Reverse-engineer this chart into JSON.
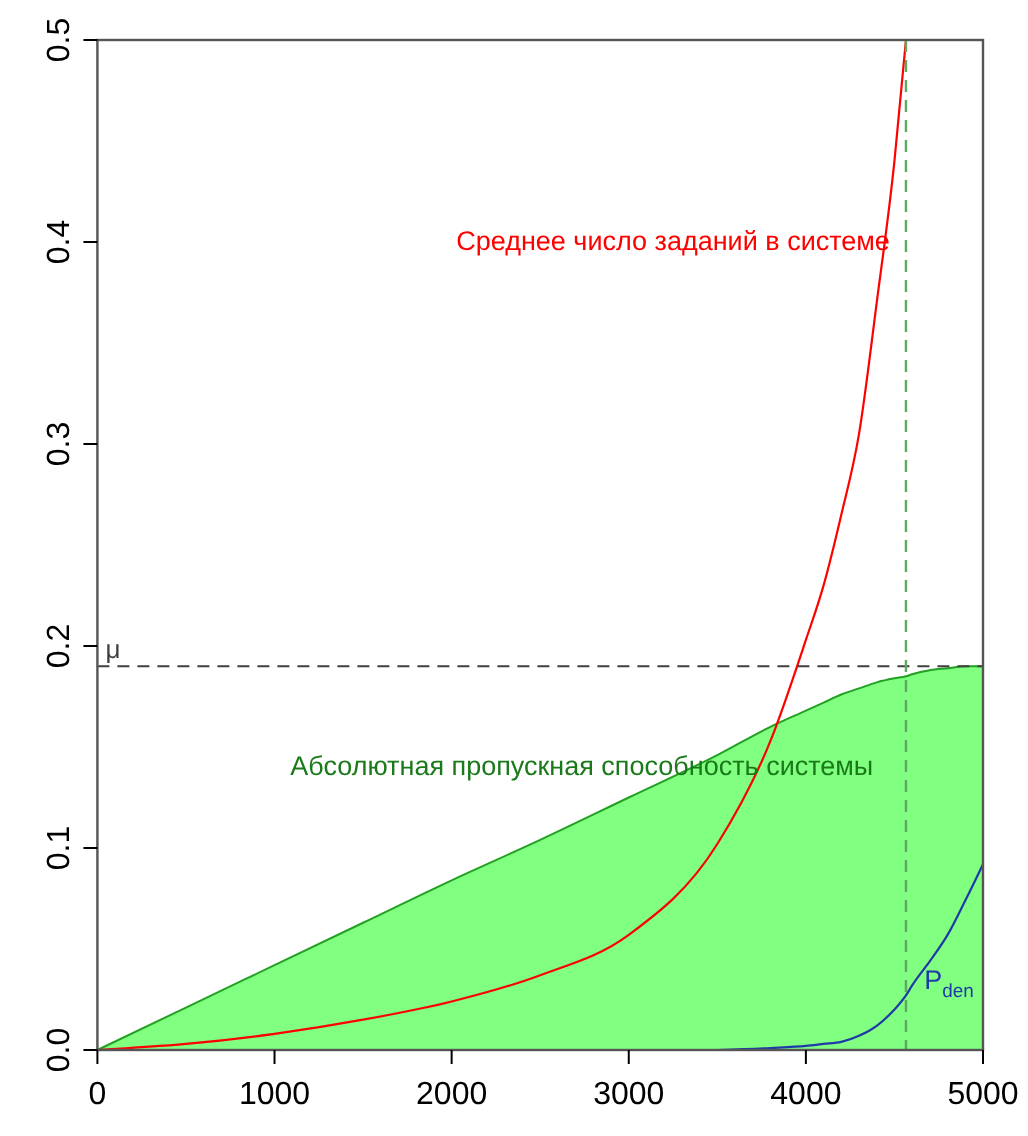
{
  "chart_data": {
    "type": "line",
    "xlim": [
      0,
      5000
    ],
    "ylim": [
      0,
      0.5
    ],
    "xticks": [
      0,
      1000,
      2000,
      3000,
      4000,
      5000
    ],
    "yticks": [
      {
        "value": 0,
        "label": "0.0"
      },
      {
        "value": 0.1,
        "label": "0.1"
      },
      {
        "value": 0.2,
        "label": "0.2"
      },
      {
        "value": 0.3,
        "label": "0.3"
      },
      {
        "value": 0.4,
        "label": "0.4"
      },
      {
        "value": 0.5,
        "label": "0.5"
      }
    ],
    "grid": false,
    "marker": "none",
    "line_style": "solid",
    "x": [
      0,
      500,
      1000,
      1500,
      2000,
      2500,
      3000,
      3500,
      3800,
      4000,
      4100,
      4200,
      4300,
      4400,
      4500,
      4565,
      4600,
      4700,
      4800,
      4900,
      5000
    ],
    "series": [
      {
        "type": "area",
        "color": "#22a022",
        "values": [
          0,
          0.021,
          0.042,
          0.063,
          0.084,
          0.104,
          0.125,
          0.146,
          0.16,
          0.168,
          0.172,
          0.176,
          0.179,
          0.182,
          0.184,
          0.185,
          0.186,
          0.188,
          0.189,
          0.19,
          0.19
        ]
      },
      {
        "color": "#ff0000",
        "x": [
          0,
          500,
          1000,
          1500,
          2000,
          2500,
          3000,
          3500,
          3800,
          4000,
          4100,
          4200,
          4300,
          4400,
          4500,
          4565
        ],
        "values": [
          0,
          0.003,
          0.008,
          0.015,
          0.024,
          0.037,
          0.057,
          0.102,
          0.153,
          0.203,
          0.23,
          0.265,
          0.305,
          0.37,
          0.44,
          0.5
        ]
      },
      {
        "name": "P$_{den}$",
        "color": "#1f3aa8",
        "values": [
          null,
          null,
          null,
          null,
          null,
          null,
          null,
          0,
          0.001,
          0.002,
          0.003,
          0.004,
          0.007,
          0.012,
          0.02,
          0.027,
          0.032,
          0.044,
          0.057,
          0.074,
          0.092
        ]
      }
    ],
    "ref_lines": [
      {
        "axis": "y",
        "value": 0.19,
        "label": "μ",
        "color": "#404040",
        "line_style": "dashed"
      },
      {
        "axis": "x",
        "value": 4565,
        "color": "#5fa85f",
        "line_style": "dashed"
      }
    ],
    "annotations": [
      "Абсолютная пропускная способность системы",
      "Среднее число заданий в системе"
    ]
  }
}
